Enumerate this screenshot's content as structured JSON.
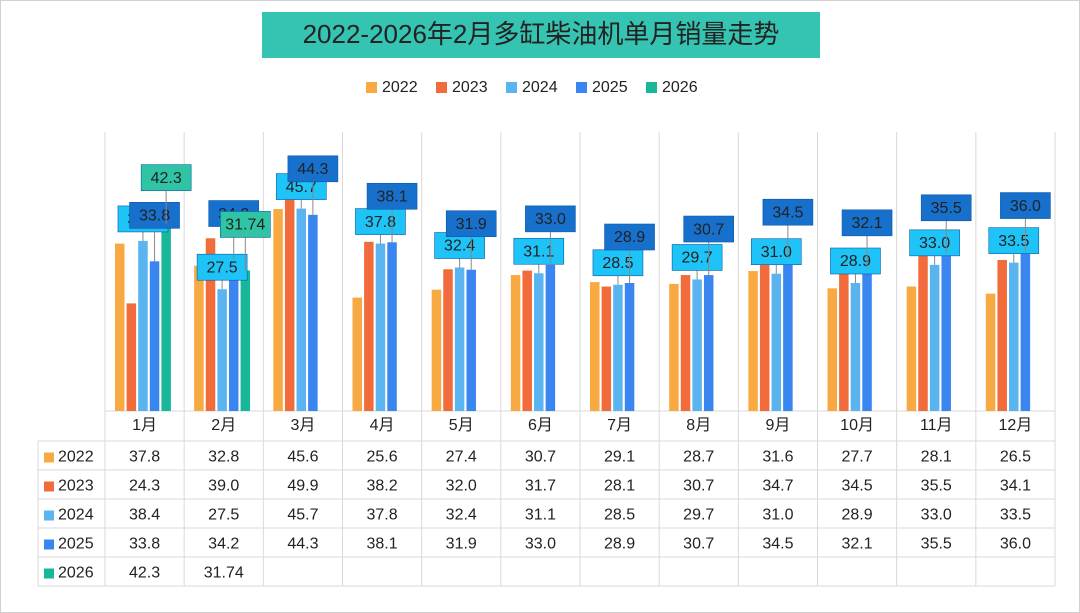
{
  "chart_data": {
    "type": "bar",
    "title": "2022-2026年2月多缸柴油机单月销量走势",
    "categories": [
      "1月",
      "2月",
      "3月",
      "4月",
      "5月",
      "6月",
      "7月",
      "8月",
      "9月",
      "10月",
      "11月",
      "12月"
    ],
    "series": [
      {
        "name": "2022",
        "color": "#f9a942",
        "data_labels": false,
        "values": [
          37.8,
          32.8,
          45.6,
          25.6,
          27.4,
          30.7,
          29.1,
          28.7,
          31.6,
          27.7,
          28.1,
          26.5
        ],
        "value_labels": [
          "37.8",
          "32.8",
          "45.6",
          "25.6",
          "27.4",
          "30.7",
          "29.1",
          "28.7",
          "31.6",
          "27.7",
          "28.1",
          "26.5"
        ]
      },
      {
        "name": "2023",
        "color": "#f26b3a",
        "data_labels": false,
        "values": [
          24.3,
          39.0,
          49.9,
          38.2,
          32.0,
          31.7,
          28.1,
          30.7,
          34.7,
          34.5,
          35.5,
          34.1
        ],
        "value_labels": [
          "24.3",
          "39.0",
          "49.9",
          "38.2",
          "32.0",
          "31.7",
          "28.1",
          "30.7",
          "34.7",
          "34.5",
          "35.5",
          "34.1"
        ]
      },
      {
        "name": "2024",
        "color": "#5ab4f0",
        "data_labels": true,
        "label_color": "#1ec3f7",
        "values": [
          38.4,
          27.5,
          45.7,
          37.8,
          32.4,
          31.1,
          28.5,
          29.7,
          31.0,
          28.9,
          33.0,
          33.5
        ],
        "value_labels": [
          "38.4",
          "27.5",
          "45.7",
          "37.8",
          "32.4",
          "31.1",
          "28.5",
          "29.7",
          "31.0",
          "28.9",
          "33.0",
          "33.5"
        ]
      },
      {
        "name": "2025",
        "color": "#3a86f0",
        "data_labels": true,
        "label_color": "#1670cc",
        "values": [
          33.8,
          34.2,
          44.3,
          38.1,
          31.9,
          33.0,
          28.9,
          30.7,
          34.5,
          32.1,
          35.5,
          36.0
        ],
        "value_labels": [
          "33.8",
          "34.2",
          "44.3",
          "38.1",
          "31.9",
          "33.0",
          "28.9",
          "30.7",
          "34.5",
          "32.1",
          "35.5",
          "36.0"
        ]
      },
      {
        "name": "2026",
        "color": "#19b79a",
        "data_labels": true,
        "label_color": "#2ec4a4",
        "values": [
          42.3,
          31.74,
          null,
          null,
          null,
          null,
          null,
          null,
          null,
          null,
          null,
          null
        ],
        "value_labels": [
          "42.3",
          "31.74",
          null,
          null,
          null,
          null,
          null,
          null,
          null,
          null,
          null,
          null
        ]
      }
    ],
    "legend": "top",
    "data_table": true
  }
}
